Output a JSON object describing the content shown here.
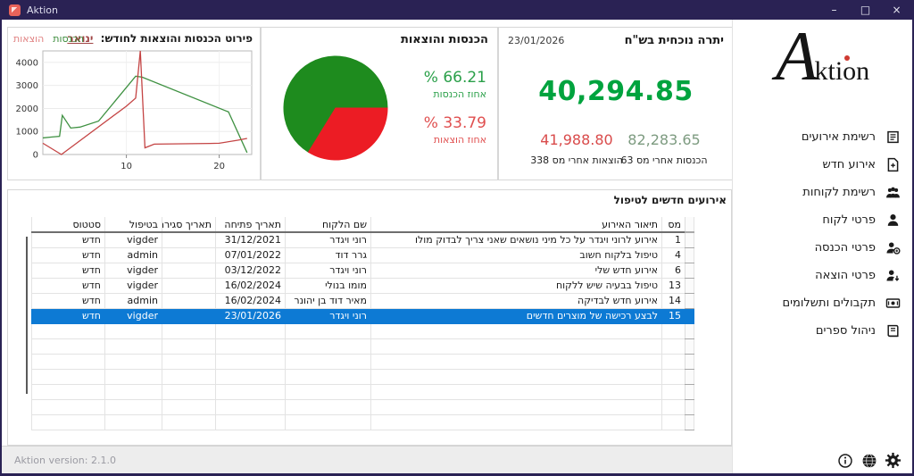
{
  "titlebar": {
    "app_name": "Aktion",
    "minimize": "–",
    "maximize": "□",
    "close": "×"
  },
  "line_chart_panel": {
    "title_prefix": "פירוט הכנסות והוצאות לחודש:",
    "month_link": "ינואר",
    "legend": [
      {
        "label": "הכנסות",
        "color": "#3c8c3c"
      },
      {
        "label": "הוצאות",
        "color": "#e08080"
      }
    ]
  },
  "pie_panel": {
    "title": "הכנסות והוצאות",
    "income_pct_display": "% 66.21",
    "income_pct_label": "אחוז הכנסות",
    "expense_pct_display": "% 33.79",
    "expense_pct_label": "אחוז הוצאות"
  },
  "balance_panel": {
    "date": "23/01/2026",
    "title": "יתרה נוכחית בש\"ח",
    "current_balance": "40,294.85",
    "income_after_tax_value": "82,283.65",
    "income_after_tax_label": "הכנסות אחרי מס 63",
    "expenses_after_tax_value": "41,988.80",
    "expenses_after_tax_label": "הוצאות אחרי מס 338"
  },
  "table": {
    "title": "אירועים חדשים לטיפול",
    "columns": [
      "מס",
      "תיאור האירוע",
      "שם הלקוח",
      "תאריך פתיחה",
      "תאריך סגירה",
      "בטיפול",
      "סטטוס"
    ],
    "rows": [
      [
        "1",
        "אירוע לרוני ויגדר על כל מיני נושאים שאני צריך לבדוק מולו",
        "רוני ויגדר",
        "31/12/2021",
        "",
        "vigder",
        "חדש"
      ],
      [
        "4",
        "טיפול בלקוח חשוב",
        "גרר דוד",
        "07/01/2022",
        "",
        "admin",
        "חדש"
      ],
      [
        "6",
        "אירוע חדש שלי",
        "רוני ויגדר",
        "03/12/2022",
        "",
        "vigder",
        "חדש"
      ],
      [
        "13",
        "טיפול בבעיה שיש ללקוח",
        "מומו בנולי",
        "16/02/2024",
        "",
        "vigder",
        "חדש"
      ],
      [
        "14",
        "אירוע חדש לבדיקה",
        "מאיר דוד בן יהונר",
        "16/02/2024",
        "",
        "admin",
        "חדש"
      ],
      [
        "15",
        "לבצע רכישה של מוצרים חדשים",
        "רוני ויגדר",
        "23/01/2026",
        "",
        "vigder",
        "חדש"
      ]
    ],
    "selected_row_index": 5,
    "empty_rows": 7
  },
  "sidebar": {
    "logo": {
      "big_letter": "A",
      "rest": "ktion"
    },
    "items": [
      {
        "label": "רשימת אירועים",
        "icon": "events-list-icon"
      },
      {
        "label": "אירוע חדש",
        "icon": "new-event-icon"
      },
      {
        "label": "רשימת לקוחות",
        "icon": "clients-list-icon"
      },
      {
        "label": "פרטי לקוח",
        "icon": "client-details-icon"
      },
      {
        "label": "פרטי הכנסה",
        "icon": "income-details-icon"
      },
      {
        "label": "פרטי הוצאה",
        "icon": "expense-details-icon"
      },
      {
        "label": "תקבולים ותשלומים",
        "icon": "receipts-payments-icon"
      },
      {
        "label": "ניהול ספרים",
        "icon": "bookkeeping-icon"
      }
    ]
  },
  "footer": {
    "version": "Aktion version: 2.1.0"
  },
  "colors": {
    "titlebar": "#2a2254",
    "app_icon": "#e8635a",
    "selection_blue": "#0d7ad4",
    "balance_green": "#00a33e",
    "income_muted_green": "#7d9b80",
    "expense_red": "#d94b4b",
    "pct_green": "#2ba04a",
    "pct_red": "#e05050",
    "month_link": "#a04545"
  },
  "chart_data": [
    {
      "type": "line",
      "title": "פירוט הכנסות והוצאות לחודש: ינואר",
      "xlabel": "",
      "ylabel": "",
      "xlim": [
        1,
        23.5
      ],
      "ylim": [
        0,
        4500
      ],
      "xticks": [
        10,
        20
      ],
      "yticks": [
        0,
        1000,
        2000,
        3000,
        4000
      ],
      "grid": true,
      "legend_position": "top-left",
      "series": [
        {
          "name": "הכנסות",
          "color": "#3f9142",
          "points": [
            [
              1,
              720
            ],
            [
              2,
              760
            ],
            [
              2.8,
              790
            ],
            [
              3.1,
              1700
            ],
            [
              4,
              1150
            ],
            [
              5,
              1190
            ],
            [
              7,
              1450
            ],
            [
              11,
              3400
            ],
            [
              11.7,
              3360
            ],
            [
              21,
              1850
            ],
            [
              23,
              80
            ]
          ]
        },
        {
          "name": "הוצאות",
          "color": "#c44444",
          "points": [
            [
              1,
              490
            ],
            [
              3,
              0
            ],
            [
              10,
              2100
            ],
            [
              11,
              2450
            ],
            [
              11.5,
              4500
            ],
            [
              12,
              290
            ],
            [
              13,
              450
            ],
            [
              19,
              480
            ],
            [
              20,
              490
            ],
            [
              22,
              620
            ],
            [
              23,
              700
            ]
          ]
        }
      ]
    },
    {
      "type": "pie",
      "title": "הכנסות והוצאות",
      "start_angle_deg": 121.64,
      "slices": [
        {
          "label": "אחוז הכנסות",
          "value": 66.21,
          "color": "#1e8b1e"
        },
        {
          "label": "אחוז הוצאות",
          "value": 33.79,
          "color": "#ec1c24"
        }
      ]
    }
  ]
}
